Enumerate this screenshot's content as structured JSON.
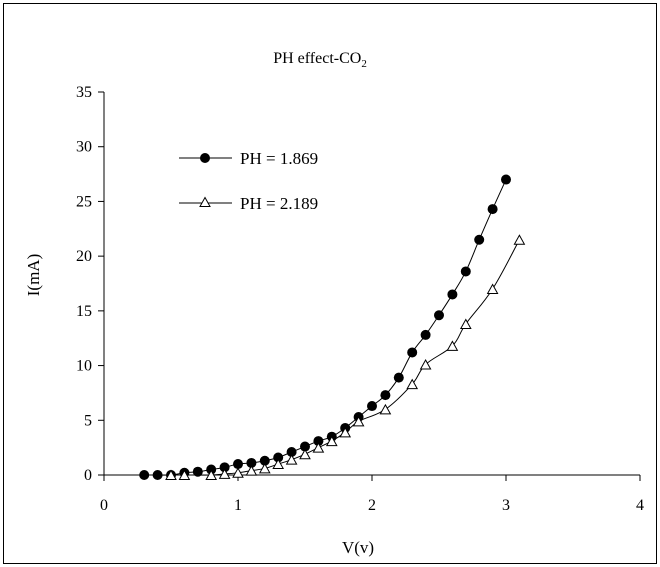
{
  "chart_data": {
    "type": "scatter",
    "title": "PH effect-CO",
    "title_subscript": "2",
    "xlabel": "V(v)",
    "ylabel": "I(mA)",
    "xlim": [
      0,
      4
    ],
    "ylim": [
      0,
      35
    ],
    "xticks": [
      "0",
      "1",
      "2",
      "3",
      "4"
    ],
    "yticks": [
      "0",
      "5",
      "10",
      "15",
      "20",
      "25",
      "30",
      "35"
    ],
    "grid": false,
    "legend_position": "top-left",
    "series": [
      {
        "name": "PH = 1.869",
        "marker": "filled-circle",
        "color": "#000000",
        "x": [
          0.3,
          0.4,
          0.5,
          0.6,
          0.7,
          0.8,
          0.9,
          1.0,
          1.1,
          1.2,
          1.3,
          1.4,
          1.5,
          1.6,
          1.7,
          1.8,
          1.9,
          2.0,
          2.1,
          2.2,
          2.3,
          2.4,
          2.5,
          2.6,
          2.7,
          2.8,
          2.9,
          3.0
        ],
        "y": [
          0.0,
          0.0,
          0.0,
          0.2,
          0.3,
          0.5,
          0.7,
          1.0,
          1.1,
          1.3,
          1.6,
          2.1,
          2.6,
          3.1,
          3.5,
          4.3,
          5.3,
          6.3,
          7.3,
          8.9,
          11.2,
          12.8,
          14.6,
          16.5,
          18.6,
          21.5,
          24.3,
          27.0
        ]
      },
      {
        "name": "PH = 2.189",
        "marker": "open-triangle",
        "color": "#000000",
        "x": [
          0.5,
          0.6,
          0.8,
          0.9,
          1.0,
          1.1,
          1.2,
          1.3,
          1.4,
          1.5,
          1.6,
          1.7,
          1.8,
          1.9,
          2.1,
          2.3,
          2.4,
          2.6,
          2.7,
          2.9,
          3.1
        ],
        "y": [
          0.0,
          0.0,
          0.0,
          0.1,
          0.2,
          0.4,
          0.6,
          1.0,
          1.4,
          1.9,
          2.5,
          3.1,
          3.9,
          4.9,
          6.0,
          8.3,
          10.1,
          11.8,
          13.8,
          17.0,
          21.5
        ]
      }
    ]
  }
}
